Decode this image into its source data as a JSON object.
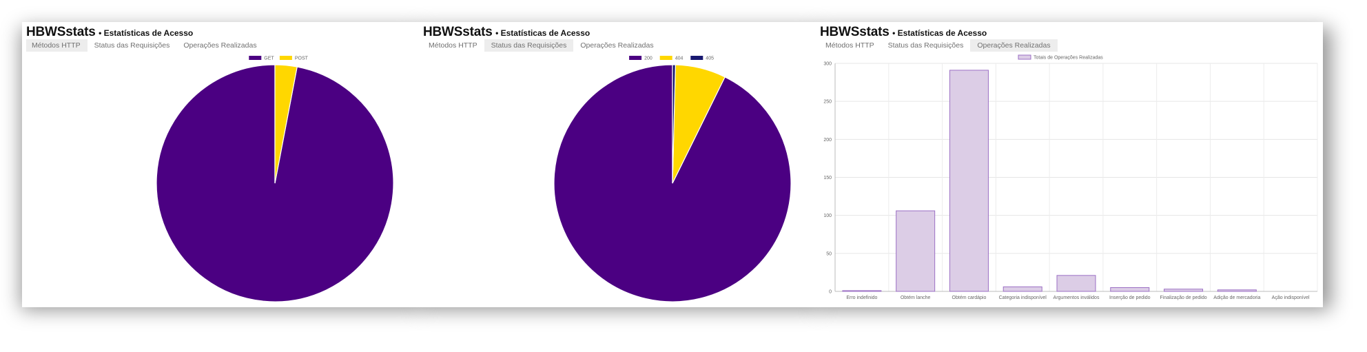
{
  "app": {
    "brand": "HBWSstats",
    "subtitle": "• Estatísticas de Acesso"
  },
  "tabs": [
    "Métodos HTTP",
    "Status das Requisições",
    "Operações Realizadas"
  ],
  "colors": {
    "purple": "#4b0082",
    "gold": "#ffd700",
    "navy": "#191970",
    "bar_fill": "#dccde6",
    "bar_border": "#9b6fc4"
  },
  "panels": [
    {
      "active_tab": 0
    },
    {
      "active_tab": 1
    },
    {
      "active_tab": 2
    }
  ],
  "chart_data": [
    {
      "type": "pie",
      "labels": [
        "GET",
        "POST"
      ],
      "values": [
        97,
        3
      ],
      "colors": [
        "#4b0082",
        "#ffd700"
      ],
      "legend": "top"
    },
    {
      "type": "pie",
      "labels": [
        "200",
        "404",
        "405"
      ],
      "values": [
        92.7,
        6.9,
        0.4
      ],
      "colors": [
        "#4b0082",
        "#ffd700",
        "#191970"
      ],
      "legend": "top"
    },
    {
      "type": "bar",
      "series": [
        {
          "name": "Totais de Operações Realizadas",
          "values": [
            1,
            106,
            291,
            6,
            21,
            5,
            3,
            2,
            0
          ]
        }
      ],
      "categories": [
        "Erro indefinido",
        "Obtém lanche",
        "Obtém cardápio",
        "Categoria indisponível",
        "Argumentos inválidos",
        "Inserção de pedido",
        "Finalização de pedido",
        "Adição de mercadoria",
        "Ação indisponível"
      ],
      "yticks": [
        0,
        50,
        100,
        150,
        200,
        250,
        300
      ],
      "ylim": [
        0,
        300
      ],
      "grid": true,
      "legend": "top"
    }
  ]
}
